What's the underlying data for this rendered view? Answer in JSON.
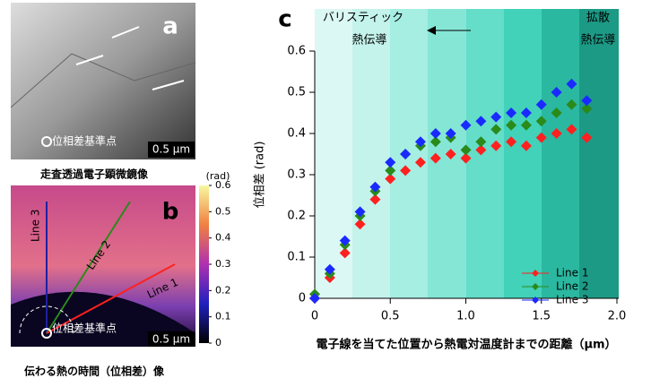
{
  "panel_a": {
    "label": "a",
    "scale_bar": "0.5 µm",
    "reference_point": "位相差基準点",
    "caption": "走査透過電子顕微鏡像"
  },
  "panel_b": {
    "label": "b",
    "lines": [
      "Line 1",
      "Line 2",
      "Line 3"
    ],
    "reference_point": "位相差基準点",
    "scale_bar": "0.5 µm",
    "caption": "伝わる熱の時間（位相差）像",
    "colorbar": {
      "unit": "(rad)",
      "clim": [
        0,
        0.6
      ],
      "ticks": [
        0,
        0.1,
        0.2,
        0.3,
        0.4,
        0.5,
        0.6
      ]
    }
  },
  "chart_data": {
    "type": "scatter",
    "label": "c",
    "xlabel": "電子線を当てた位置から熱電対温度計までの距離（µm）",
    "ylabel": "位相差 (rad)",
    "annotations": [
      "バリスティック",
      "熱伝導",
      "拡散",
      "熱伝導"
    ],
    "xlim": [
      0,
      2
    ],
    "xticks": [
      0,
      0.5,
      {
        "value": 1,
        "label": "1.0"
      },
      1.5,
      {
        "value": 2,
        "label": "2.0"
      }
    ],
    "ylim": [
      0,
      0.6
    ],
    "yticks": [
      0,
      0.1,
      0.2,
      0.3,
      0.4,
      0.5,
      0.6
    ],
    "x": [
      0,
      0.1,
      0.2,
      0.3,
      0.4,
      0.5,
      0.6,
      0.7,
      0.8,
      0.9,
      1.0,
      1.1,
      1.2,
      1.3,
      1.4,
      1.5,
      1.6,
      1.7,
      1.8
    ],
    "series": [
      {
        "name": "Line 1",
        "color": "#ff2020",
        "values": [
          0.0,
          0.05,
          0.11,
          0.18,
          0.24,
          0.29,
          0.31,
          0.33,
          0.34,
          0.35,
          0.34,
          0.36,
          0.37,
          0.38,
          0.37,
          0.39,
          0.4,
          0.41,
          0.39
        ]
      },
      {
        "name": "Line 2",
        "color": "#2a8a1a",
        "values": [
          0.01,
          0.06,
          0.13,
          0.2,
          0.26,
          0.31,
          0.35,
          0.37,
          0.38,
          0.39,
          0.36,
          0.38,
          0.41,
          0.42,
          0.42,
          0.43,
          0.45,
          0.47,
          0.46
        ]
      },
      {
        "name": "Line 3",
        "color": "#1a2aff",
        "values": [
          0.0,
          0.07,
          0.14,
          0.21,
          0.27,
          0.33,
          0.35,
          0.38,
          0.4,
          0.4,
          0.42,
          0.43,
          0.44,
          0.45,
          0.45,
          0.47,
          0.5,
          0.52,
          0.48
        ]
      }
    ]
  }
}
